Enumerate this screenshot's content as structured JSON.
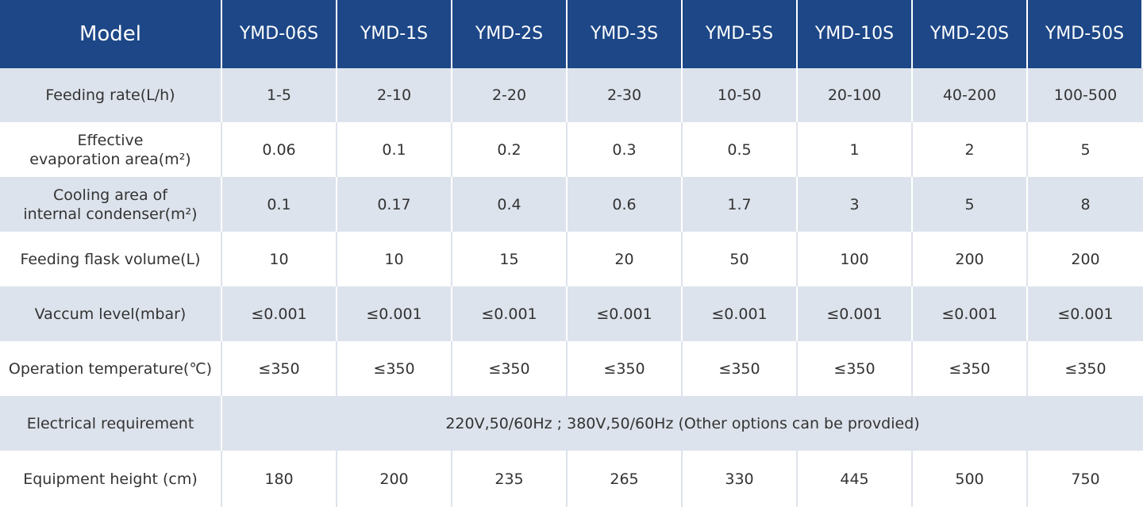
{
  "table": {
    "header": {
      "label": "Model",
      "models": [
        "YMD-06S",
        "YMD-1S",
        "YMD-2S",
        "YMD-3S",
        "YMD-5S",
        "YMD-10S",
        "YMD-20S",
        "YMD-50S"
      ]
    },
    "rows": [
      {
        "label": [
          "Feeding rate(L/h)"
        ],
        "cells": [
          "1-5",
          "2-10",
          "2-20",
          "2-30",
          "10-50",
          "20-100",
          "40-200",
          "100-500"
        ]
      },
      {
        "label": [
          "Effective",
          "evaporation area(m²)"
        ],
        "cells": [
          "0.06",
          "0.1",
          "0.2",
          "0.3",
          "0.5",
          "1",
          "2",
          "5"
        ]
      },
      {
        "label": [
          "Cooling area of",
          "internal condenser(m²)"
        ],
        "cells": [
          "0.1",
          "0.17",
          "0.4",
          "0.6",
          "1.7",
          "3",
          "5",
          "8"
        ]
      },
      {
        "label": [
          "Feeding flask volume(L)"
        ],
        "cells": [
          "10",
          "10",
          "15",
          "20",
          "50",
          "100",
          "200",
          "200"
        ]
      },
      {
        "label": [
          "Vaccum level(mbar)"
        ],
        "cells": [
          "≤0.001",
          "≤0.001",
          "≤0.001",
          "≤0.001",
          "≤0.001",
          "≤0.001",
          "≤0.001",
          "≤0.001"
        ]
      },
      {
        "label": [
          "Operation temperature(℃)"
        ],
        "cells": [
          "≤350",
          "≤350",
          "≤350",
          "≤350",
          "≤350",
          "≤350",
          "≤350",
          "≤350"
        ]
      },
      {
        "label": [
          "Electrical requirement"
        ],
        "cells": [
          "220V,50/60Hz ; 380V,50/60Hz (Other options can be provdied)"
        ]
      },
      {
        "label": [
          "Equipment height (cm)"
        ],
        "cells": [
          "180",
          "200",
          "235",
          "265",
          "330",
          "445",
          "500",
          "750"
        ]
      }
    ]
  }
}
